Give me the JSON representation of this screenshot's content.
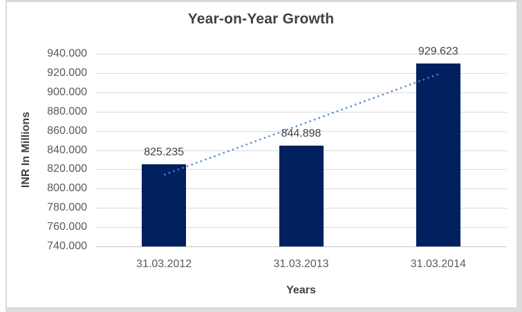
{
  "frame": {
    "border_color": "#D9D9D9",
    "shadow_color": "#DCDCDC"
  },
  "chart_data": {
    "type": "bar",
    "title": "Year-on-Year Growth",
    "xlabel": "Years",
    "ylabel": "INR In Millions",
    "categories": [
      "31.03.2012",
      "31.03.2013",
      "31.03.2014"
    ],
    "values": [
      825.235,
      844.898,
      929.623
    ],
    "data_labels": [
      "825.235",
      "844.898",
      "929.623"
    ],
    "ylim": [
      740,
      940
    ],
    "ytick_step": 20,
    "ytick_labels": [
      "740.000",
      "760.000",
      "780.000",
      "800.000",
      "820.000",
      "840.000",
      "860.000",
      "880.000",
      "900.000",
      "920.000",
      "940.000"
    ],
    "grid": true,
    "legend": "none",
    "trendline": {
      "type": "linear",
      "style": "dotted",
      "color": "#4E87C8"
    },
    "colors": {
      "bar": "#002060",
      "gridline": "#D9D9D9",
      "axis_line": "#C6C6C6",
      "title_text": "#404040",
      "tick_text": "#595959",
      "data_label_text": "#404040",
      "axis_title_text": "#404040"
    }
  }
}
